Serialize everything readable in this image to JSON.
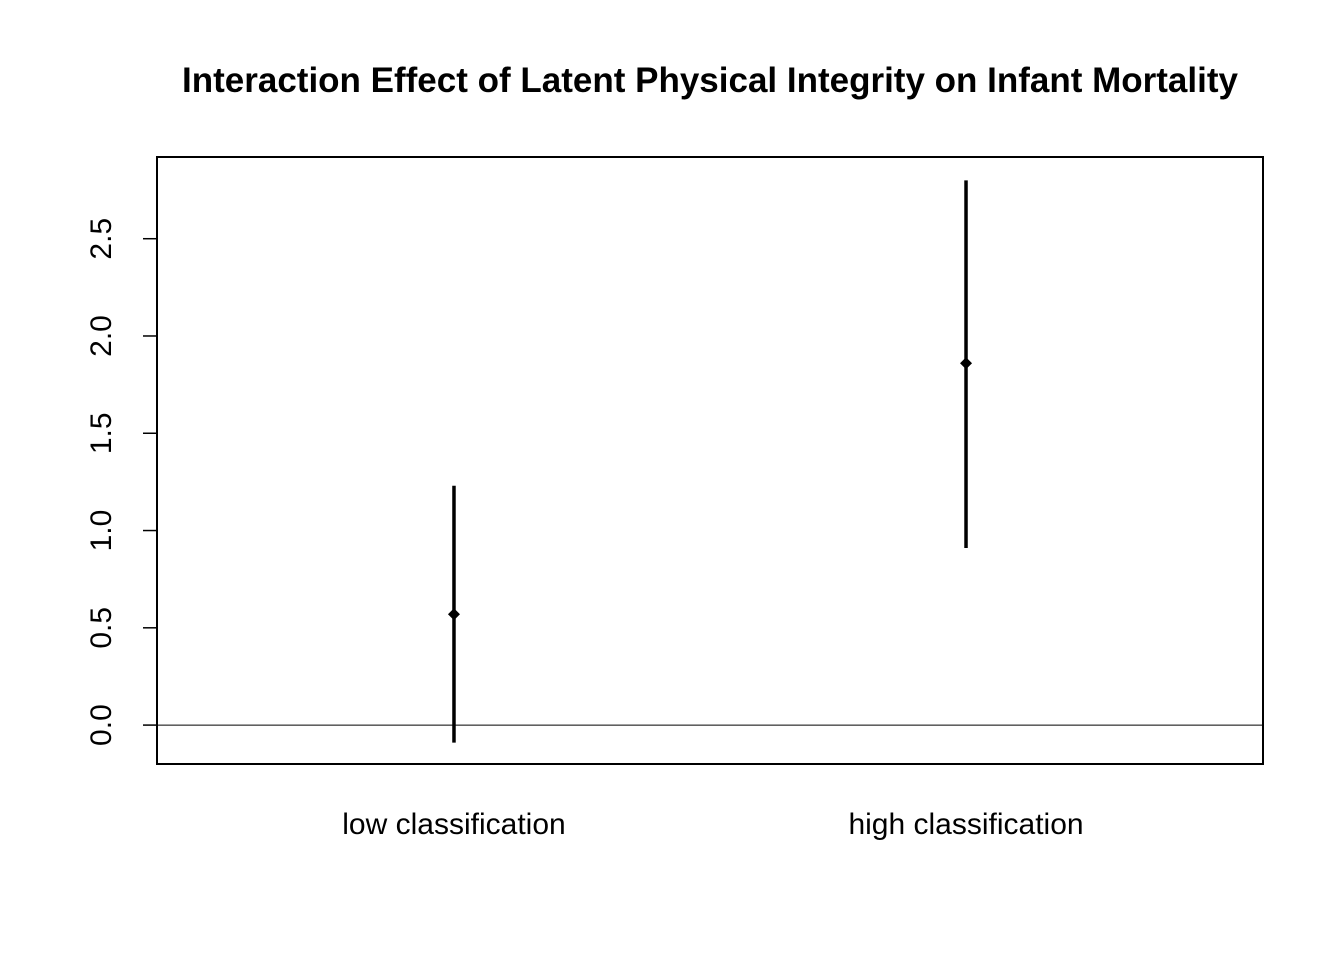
{
  "chart_data": {
    "type": "scatter",
    "subtype": "point-range",
    "title": "Interaction Effect of Latent Physical Integrity on Infant Mortality",
    "xlabel": "",
    "ylabel": "",
    "categories": [
      "low classification",
      "high classification"
    ],
    "series": [
      {
        "points": [
          {
            "category": "low classification",
            "estimate": 0.57,
            "lower": -0.09,
            "upper": 1.23
          },
          {
            "category": "high classification",
            "estimate": 1.86,
            "lower": 0.91,
            "upper": 2.8
          }
        ]
      }
    ],
    "ylim": [
      -0.2,
      2.92
    ],
    "yticks": [
      0.0,
      0.5,
      1.0,
      1.5,
      2.0,
      2.5
    ],
    "ytick_labels": [
      "0.0",
      "0.5",
      "1.0",
      "1.5",
      "2.0",
      "2.5"
    ],
    "reference_line": {
      "y": 0
    },
    "grid": false,
    "legend": "none",
    "colors": {
      "marks": "#000000",
      "background": "#ffffff"
    }
  }
}
